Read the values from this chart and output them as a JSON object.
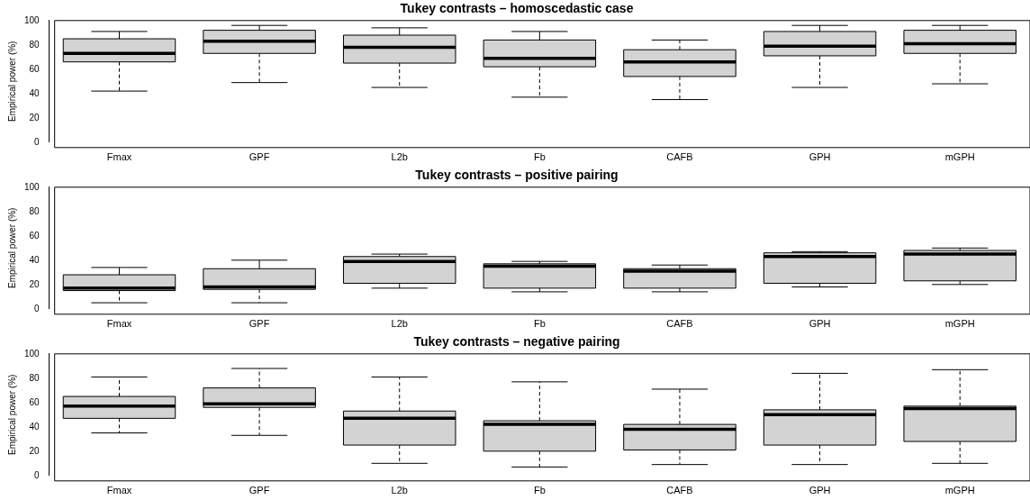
{
  "chart_data": [
    {
      "type": "box",
      "title": "Tukey contrasts – homoscedastic case",
      "ylabel": "Empirical power (%)",
      "categories": [
        "Fmax",
        "GPF",
        "L2b",
        "Fb",
        "CAFB",
        "GPH",
        "mGPH"
      ],
      "color": "#d3d3d3",
      "ylim": [
        0,
        100
      ],
      "yticks": [
        0,
        20,
        40,
        60,
        80,
        100
      ],
      "grid": false,
      "boxes": [
        {
          "low": 42,
          "q1": 66,
          "median": 73,
          "q3": 85,
          "high": 91
        },
        {
          "low": 49,
          "q1": 73,
          "median": 83,
          "q3": 92,
          "high": 96
        },
        {
          "low": 45,
          "q1": 65,
          "median": 78,
          "q3": 88,
          "high": 94
        },
        {
          "low": 37,
          "q1": 62,
          "median": 69,
          "q3": 84,
          "high": 91
        },
        {
          "low": 35,
          "q1": 54,
          "median": 66,
          "q3": 76,
          "high": 84
        },
        {
          "low": 45,
          "q1": 71,
          "median": 79,
          "q3": 91,
          "high": 96
        },
        {
          "low": 48,
          "q1": 73,
          "median": 81,
          "q3": 92,
          "high": 96
        }
      ]
    },
    {
      "type": "box",
      "title": "Tukey contrasts – positive pairing",
      "ylabel": "Empirical power (%)",
      "categories": [
        "Fmax",
        "GPF",
        "L2b",
        "Fb",
        "CAFB",
        "GPH",
        "mGPH"
      ],
      "color": "#d3d3d3",
      "ylim": [
        0,
        100
      ],
      "yticks": [
        0,
        20,
        40,
        60,
        80,
        100
      ],
      "grid": false,
      "boxes": [
        {
          "low": 5,
          "q1": 15,
          "median": 17,
          "q3": 28,
          "high": 34
        },
        {
          "low": 5,
          "q1": 16,
          "median": 18,
          "q3": 33,
          "high": 40
        },
        {
          "low": 17,
          "q1": 21,
          "median": 39,
          "q3": 43,
          "high": 45
        },
        {
          "low": 14,
          "q1": 17,
          "median": 35,
          "q3": 37,
          "high": 39
        },
        {
          "low": 14,
          "q1": 17,
          "median": 31,
          "q3": 33,
          "high": 36
        },
        {
          "low": 18,
          "q1": 21,
          "median": 43,
          "q3": 46,
          "high": 47
        },
        {
          "low": 20,
          "q1": 23,
          "median": 45,
          "q3": 48,
          "high": 50
        }
      ]
    },
    {
      "type": "box",
      "title": "Tukey contrasts – negative pairing",
      "ylabel": "Empirical power (%)",
      "categories": [
        "Fmax",
        "GPF",
        "L2b",
        "Fb",
        "CAFB",
        "GPH",
        "mGPH"
      ],
      "color": "#d3d3d3",
      "ylim": [
        0,
        100
      ],
      "yticks": [
        0,
        20,
        40,
        60,
        80,
        100
      ],
      "grid": false,
      "boxes": [
        {
          "low": 35,
          "q1": 47,
          "median": 57,
          "q3": 65,
          "high": 81
        },
        {
          "low": 33,
          "q1": 56,
          "median": 59,
          "q3": 72,
          "high": 88
        },
        {
          "low": 10,
          "q1": 25,
          "median": 47,
          "q3": 53,
          "high": 81
        },
        {
          "low": 7,
          "q1": 20,
          "median": 42,
          "q3": 45,
          "high": 77
        },
        {
          "low": 9,
          "q1": 21,
          "median": 38,
          "q3": 42,
          "high": 71
        },
        {
          "low": 9,
          "q1": 25,
          "median": 50,
          "q3": 54,
          "high": 84
        },
        {
          "low": 10,
          "q1": 28,
          "median": 55,
          "q3": 57,
          "high": 87
        }
      ]
    }
  ]
}
